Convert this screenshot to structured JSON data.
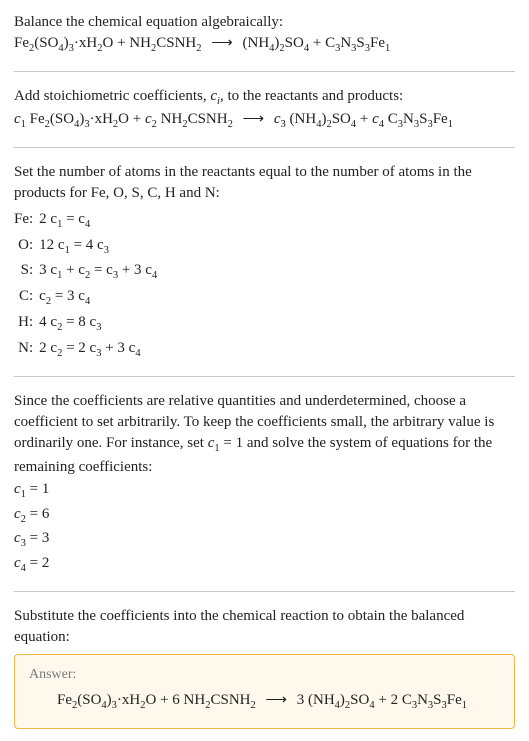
{
  "intro": {
    "line1": "Balance the chemical equation algebraically:",
    "eq_lhs1": "Fe",
    "eq_lhs1_sub1": "2",
    "eq_lhs2": "(SO",
    "eq_lhs2_sub": "4",
    "eq_lhs3": ")",
    "eq_lhs3_sub": "3",
    "eq_lhs4": "·xH",
    "eq_lhs4_sub": "2",
    "eq_lhs5": "O + NH",
    "eq_lhs5_sub": "2",
    "eq_lhs6": "CSNH",
    "eq_lhs6_sub": "2",
    "arrow": "⟶",
    "eq_rhs1": "(NH",
    "eq_rhs1_sub": "4",
    "eq_rhs2": ")",
    "eq_rhs2_sub": "2",
    "eq_rhs3": "SO",
    "eq_rhs3_sub": "4",
    "eq_rhs4": " + C",
    "eq_rhs4_sub": "3",
    "eq_rhs5": "N",
    "eq_rhs5_sub": "3",
    "eq_rhs6": "S",
    "eq_rhs6_sub": "3",
    "eq_rhs7": "Fe",
    "eq_rhs7_sub": "1"
  },
  "step1": {
    "text_a": "Add stoichiometric coefficients, ",
    "ci": "c",
    "ci_sub": "i",
    "text_b": ", to the reactants and products:",
    "c1": "c",
    "s1": "1",
    "sp1": " Fe",
    "ss1": "2",
    "p2a": "(SO",
    "p2s": "4",
    "p2b": ")",
    "p2bs": "3",
    "p3a": "·xH",
    "p3s": "2",
    "p3b": "O + ",
    "c2": "c",
    "s2": "2",
    "sp2": " NH",
    "ss2": "2",
    "p4a": "CSNH",
    "p4s": "2",
    "arrow": "⟶",
    "c3": "c",
    "s3": "3",
    "sp3": " (NH",
    "ss3": "4",
    "p5a": ")",
    "p5s": "2",
    "p5b": "SO",
    "p5bs": "4",
    "plus": " + ",
    "c4": "c",
    "s4": "4",
    "sp4": " C",
    "ss4": "3",
    "p6a": "N",
    "p6s": "3",
    "p6b": "S",
    "p6bs": "3",
    "p6c": "Fe",
    "p6cs": "1"
  },
  "step2": {
    "text": "Set the number of atoms in the reactants equal to the number of atoms in the products for Fe, O, S, C, H and N:",
    "rows": [
      {
        "el": "Fe:",
        "lhs": "2 c",
        "ls": "1",
        "mid": " = c",
        "rs": "4",
        "tail": ""
      },
      {
        "el": "O:",
        "lhs": "12 c",
        "ls": "1",
        "mid": " = 4 c",
        "rs": "3",
        "tail": ""
      },
      {
        "el": "S:",
        "lhs": "3 c",
        "ls": "1",
        "mid": " + c",
        "rs": "2",
        "mid2": " = c",
        "rs2": "3",
        "mid3": " + 3 c",
        "rs3": "4"
      },
      {
        "el": "C:",
        "lhs": "c",
        "ls": "2",
        "mid": " = 3 c",
        "rs": "4",
        "tail": ""
      },
      {
        "el": "H:",
        "lhs": "4 c",
        "ls": "2",
        "mid": " = 8 c",
        "rs": "3",
        "tail": ""
      },
      {
        "el": "N:",
        "lhs": "2 c",
        "ls": "2",
        "mid": " = 2 c",
        "rs": "3",
        "mid2": " + 3 c",
        "rs2": "4"
      }
    ]
  },
  "step3": {
    "text_a": "Since the coefficients are relative quantities and underdetermined, choose a coefficient to set arbitrarily. To keep the coefficients small, the arbitrary value is ordinarily one. For instance, set ",
    "c1": "c",
    "c1s": "1",
    "text_b": " = 1 and solve the system of equations for the remaining coefficients:",
    "coeffs": [
      {
        "c": "c",
        "s": "1",
        "v": " = 1"
      },
      {
        "c": "c",
        "s": "2",
        "v": " = 6"
      },
      {
        "c": "c",
        "s": "3",
        "v": " = 3"
      },
      {
        "c": "c",
        "s": "4",
        "v": " = 2"
      }
    ]
  },
  "step4": {
    "text": "Substitute the coefficients into the chemical reaction to obtain the balanced equation:"
  },
  "answer": {
    "title": "Answer:",
    "a1": "Fe",
    "a1s": "2",
    "a2": "(SO",
    "a2s": "4",
    "a3": ")",
    "a3s": "3",
    "a4": "·xH",
    "a4s": "2",
    "a5": "O + 6 NH",
    "a5s": "2",
    "a6": "CSNH",
    "a6s": "2",
    "arrow": "⟶",
    "b1": "3 (NH",
    "b1s": "4",
    "b2": ")",
    "b2s": "2",
    "b3": "SO",
    "b3s": "4",
    "b4": " + 2 C",
    "b4s": "3",
    "b5": "N",
    "b5s": "3",
    "b6": "S",
    "b6s": "3",
    "b7": "Fe",
    "b7s": "1"
  }
}
